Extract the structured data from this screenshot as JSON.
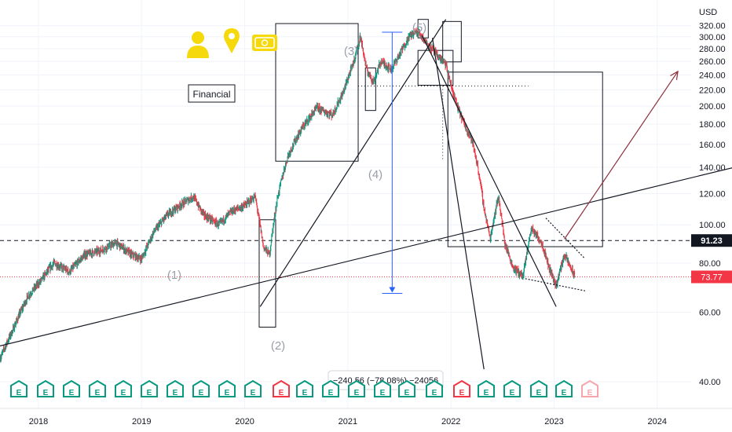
{
  "chart_data": {
    "type": "candlestick",
    "currency": "USD",
    "x_ticks": [
      "2018",
      "2019",
      "2020",
      "2021",
      "2022",
      "2023",
      "2024"
    ],
    "y_ticks": [
      "320.00",
      "300.00",
      "280.00",
      "260.00",
      "240.00",
      "220.00",
      "200.00",
      "180.00",
      "160.00",
      "140.00",
      "120.00",
      "100.00",
      "80.00",
      "60.00",
      "40.00"
    ],
    "ylim": [
      35,
      327
    ],
    "last_price": "73.77",
    "marked_level": "91.23",
    "last_price_color": "#f23645",
    "marked_level_color": "#131722",
    "wave_labels": [
      "(1)",
      "(2)",
      "(3)",
      "(4)",
      "(5)"
    ],
    "annotation_label": "Financial",
    "measure_label": "−240.56 (−78.08%) −24056",
    "earnings_badge": "E",
    "price_path": [
      {
        "t": 2017.63,
        "v": 46
      },
      {
        "t": 2017.75,
        "v": 54
      },
      {
        "t": 2017.9,
        "v": 66
      },
      {
        "t": 2018.02,
        "v": 72
      },
      {
        "t": 2018.15,
        "v": 80
      },
      {
        "t": 2018.3,
        "v": 76
      },
      {
        "t": 2018.45,
        "v": 84
      },
      {
        "t": 2018.6,
        "v": 86
      },
      {
        "t": 2018.75,
        "v": 90
      },
      {
        "t": 2018.9,
        "v": 84
      },
      {
        "t": 2019.0,
        "v": 82
      },
      {
        "t": 2019.12,
        "v": 96
      },
      {
        "t": 2019.25,
        "v": 106
      },
      {
        "t": 2019.37,
        "v": 112
      },
      {
        "t": 2019.5,
        "v": 118
      },
      {
        "t": 2019.6,
        "v": 106
      },
      {
        "t": 2019.75,
        "v": 100
      },
      {
        "t": 2019.87,
        "v": 108
      },
      {
        "t": 2020.0,
        "v": 112
      },
      {
        "t": 2020.1,
        "v": 118
      },
      {
        "t": 2020.18,
        "v": 88
      },
      {
        "t": 2020.24,
        "v": 84
      },
      {
        "t": 2020.32,
        "v": 118
      },
      {
        "t": 2020.42,
        "v": 150
      },
      {
        "t": 2020.55,
        "v": 175
      },
      {
        "t": 2020.7,
        "v": 198
      },
      {
        "t": 2020.85,
        "v": 190
      },
      {
        "t": 2020.95,
        "v": 215
      },
      {
        "t": 2021.05,
        "v": 255
      },
      {
        "t": 2021.12,
        "v": 300
      },
      {
        "t": 2021.18,
        "v": 248
      },
      {
        "t": 2021.25,
        "v": 230
      },
      {
        "t": 2021.32,
        "v": 260
      },
      {
        "t": 2021.42,
        "v": 248
      },
      {
        "t": 2021.5,
        "v": 270
      },
      {
        "t": 2021.6,
        "v": 302
      },
      {
        "t": 2021.68,
        "v": 310
      },
      {
        "t": 2021.76,
        "v": 290
      },
      {
        "t": 2021.86,
        "v": 270
      },
      {
        "t": 2021.95,
        "v": 255
      },
      {
        "t": 2022.0,
        "v": 225
      },
      {
        "t": 2022.06,
        "v": 200
      },
      {
        "t": 2022.13,
        "v": 180
      },
      {
        "t": 2022.2,
        "v": 165
      },
      {
        "t": 2022.26,
        "v": 140
      },
      {
        "t": 2022.32,
        "v": 110
      },
      {
        "t": 2022.38,
        "v": 92
      },
      {
        "t": 2022.46,
        "v": 118
      },
      {
        "t": 2022.52,
        "v": 90
      },
      {
        "t": 2022.6,
        "v": 78
      },
      {
        "t": 2022.7,
        "v": 74
      },
      {
        "t": 2022.78,
        "v": 98
      },
      {
        "t": 2022.88,
        "v": 90
      },
      {
        "t": 2022.95,
        "v": 78
      },
      {
        "t": 2023.02,
        "v": 70
      },
      {
        "t": 2023.1,
        "v": 84
      },
      {
        "t": 2023.16,
        "v": 78
      },
      {
        "t": 2023.2,
        "v": 73.77
      }
    ],
    "levels": [
      {
        "name": "marked-level-line",
        "v": 91.23,
        "style": "dashed-black"
      },
      {
        "name": "last-price-line",
        "v": 73.77,
        "style": "dotted-red"
      },
      {
        "name": "dotted-midline",
        "v": 225,
        "t0": 2021.1,
        "t1": 2022.75,
        "style": "dotted-black"
      }
    ],
    "trend_lines": [
      {
        "name": "long-term-support-line",
        "t0": 2017.3,
        "v0": 47,
        "t1": 2024.8,
        "v1": 141
      },
      {
        "name": "rising-channel-line",
        "t0": 2020.15,
        "v0": 62,
        "t1": 2021.95,
        "v1": 332
      },
      {
        "name": "steep-falling-line",
        "t0": 2021.82,
        "v0": 298,
        "t1": 2022.32,
        "v1": 43
      },
      {
        "name": "falling-trend-line",
        "t0": 2021.72,
        "v0": 302,
        "t1": 2023.02,
        "v1": 62
      },
      {
        "name": "descending-wedge-top-line",
        "t0": 2022.92,
        "v0": 104,
        "t1": 2023.3,
        "v1": 82
      },
      {
        "name": "descending-wedge-bottom-line",
        "t0": 2022.72,
        "v0": 73,
        "t1": 2023.3,
        "v1": 68
      }
    ],
    "projection_arrow": {
      "t0": 2023.1,
      "v0": 92,
      "t1": 2024.2,
      "v1": 245,
      "color": "#8e2f3a"
    },
    "boxes": [
      {
        "name": "wave-3-box",
        "t0": 2020.3,
        "v0": 324,
        "t1": 2021.1,
        "v1": 145
      },
      {
        "name": "wave-2-box",
        "t0": 2020.14,
        "v0": 103,
        "t1": 2020.3,
        "v1": 55
      },
      {
        "name": "wave-4-box",
        "t0": 2021.17,
        "v0": 250,
        "t1": 2021.27,
        "v1": 195
      },
      {
        "name": "wave-5-box",
        "t0": 2021.68,
        "v0": 332,
        "t1": 2021.78,
        "v1": 298
      },
      {
        "name": "correction-top-box",
        "t0": 2021.68,
        "v0": 277,
        "t1": 2022.02,
        "v1": 226
      },
      {
        "name": "correction-high-box",
        "t0": 2021.92,
        "v0": 328,
        "t1": 2022.1,
        "v1": 259
      },
      {
        "name": "correction-zone-box",
        "t0": 2021.97,
        "v0": 244,
        "t1": 2023.47,
        "v1": 88
      }
    ],
    "measure": {
      "t": 2021.43,
      "v_top": 308,
      "v_bottom": 67
    }
  }
}
